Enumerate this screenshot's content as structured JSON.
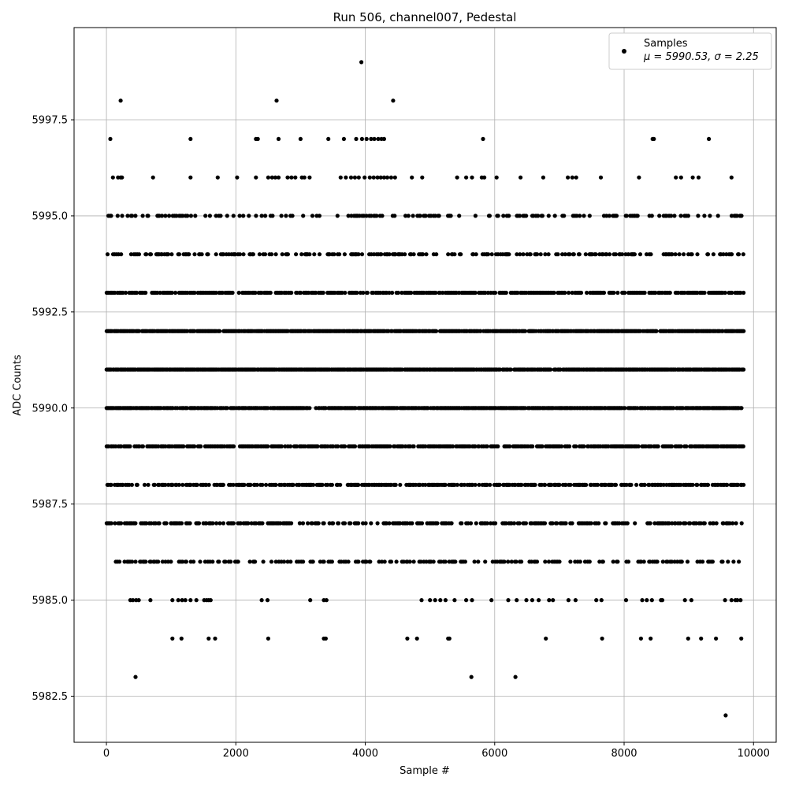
{
  "chart_data": {
    "type": "scatter",
    "title": "Run 506, channel007, Pedestal",
    "xlabel": "Sample #",
    "ylabel": "ADC Counts",
    "xlim": [
      -500,
      10350
    ],
    "ylim": [
      5981.3,
      5999.9
    ],
    "xticks": [
      0,
      2000,
      4000,
      6000,
      8000,
      10000
    ],
    "xtick_labels": [
      "0",
      "2000",
      "4000",
      "6000",
      "8000",
      "10000"
    ],
    "yticks": [
      5982.5,
      5985.0,
      5987.5,
      5990.0,
      5992.5,
      5995.0,
      5997.5
    ],
    "ytick_labels": [
      "5982.5",
      "5985.0",
      "5987.5",
      "5990.0",
      "5992.5",
      "5995.0",
      "5997.5"
    ],
    "grid": true,
    "legend": {
      "position": "top-right",
      "label": "Samples",
      "stats": "μ = 5990.53, σ = 2.25"
    },
    "n_samples": 9850,
    "mean": 5990.53,
    "std": 2.25,
    "series": [
      {
        "name": "Samples",
        "color": "#000000",
        "levels": [
          {
            "y": 5999,
            "x": [
              3940
            ]
          },
          {
            "y": 5998,
            "x": [
              220,
              2630,
              4430
            ]
          },
          {
            "y": 5997,
            "x": [
              60,
              1300,
              2310,
              2340,
              2660,
              3000,
              3430,
              3670,
              3860,
              3950,
              4020,
              4090,
              4140,
              4200,
              4250,
              4290,
              5820,
              8440,
              8460,
              9310
            ]
          },
          {
            "y": 5996,
            "x": [
              100,
              180,
              220,
              240,
              720,
              1300,
              1720,
              2020,
              2310,
              2500,
              2560,
              2610,
              2660,
              2800,
              2860,
              2920,
              3020,
              3060,
              3140,
              3620,
              3700,
              3780,
              3840,
              3900,
              3990,
              4070,
              4130,
              4190,
              4240,
              4290,
              4340,
              4400,
              4460,
              4720,
              4880,
              5420,
              5560,
              5650,
              5800,
              5840,
              6030,
              6400,
              6750,
              7130,
              7200,
              7260,
              7640,
              8230,
              8800,
              8880,
              9060,
              9150,
              9660
            ]
          }
        ],
        "bands": [
          {
            "y": 5995,
            "density": 0.22
          },
          {
            "y": 5994,
            "density": 0.3
          },
          {
            "y": 5993,
            "density": 0.55
          },
          {
            "y": 5992,
            "density": 0.85
          },
          {
            "y": 5991,
            "density": 0.85
          },
          {
            "y": 5990,
            "density": 0.8
          },
          {
            "y": 5989,
            "density": 0.6
          },
          {
            "y": 5988,
            "density": 0.5
          },
          {
            "y": 5987,
            "density": 0.42
          },
          {
            "y": 5986,
            "density": 0.3
          }
        ],
        "sparse_levels": [
          {
            "y": 5985,
            "x": [
              370,
              410,
              460,
              500,
              680,
              1020,
              1110,
              1170,
              1220,
              1300,
              1390,
              1510,
              1550,
              1580,
              1610,
              2400,
              2490,
              3150,
              3360,
              3400,
              4870,
              5000,
              5080,
              5160,
              5240,
              5380,
              5560,
              5650,
              5950,
              6210,
              6340,
              6490,
              6580,
              6680,
              6840,
              6900,
              7140,
              7250,
              7570,
              7650,
              8030,
              8280,
              8350,
              8430,
              8570,
              8590,
              8940,
              9040,
              9560,
              9660,
              9720,
              9750,
              9800
            ]
          },
          {
            "y": 5984,
            "x": [
              1020,
              1160,
              1580,
              1680,
              2500,
              3360,
              3390,
              4650,
              4800,
              5280,
              5300,
              6790,
              7660,
              8260,
              8410,
              8990,
              9190,
              9420,
              9810
            ]
          },
          {
            "y": 5983,
            "x": [
              450,
              5640,
              6320
            ]
          },
          {
            "y": 5982,
            "x": [
              9570
            ]
          }
        ]
      }
    ]
  }
}
